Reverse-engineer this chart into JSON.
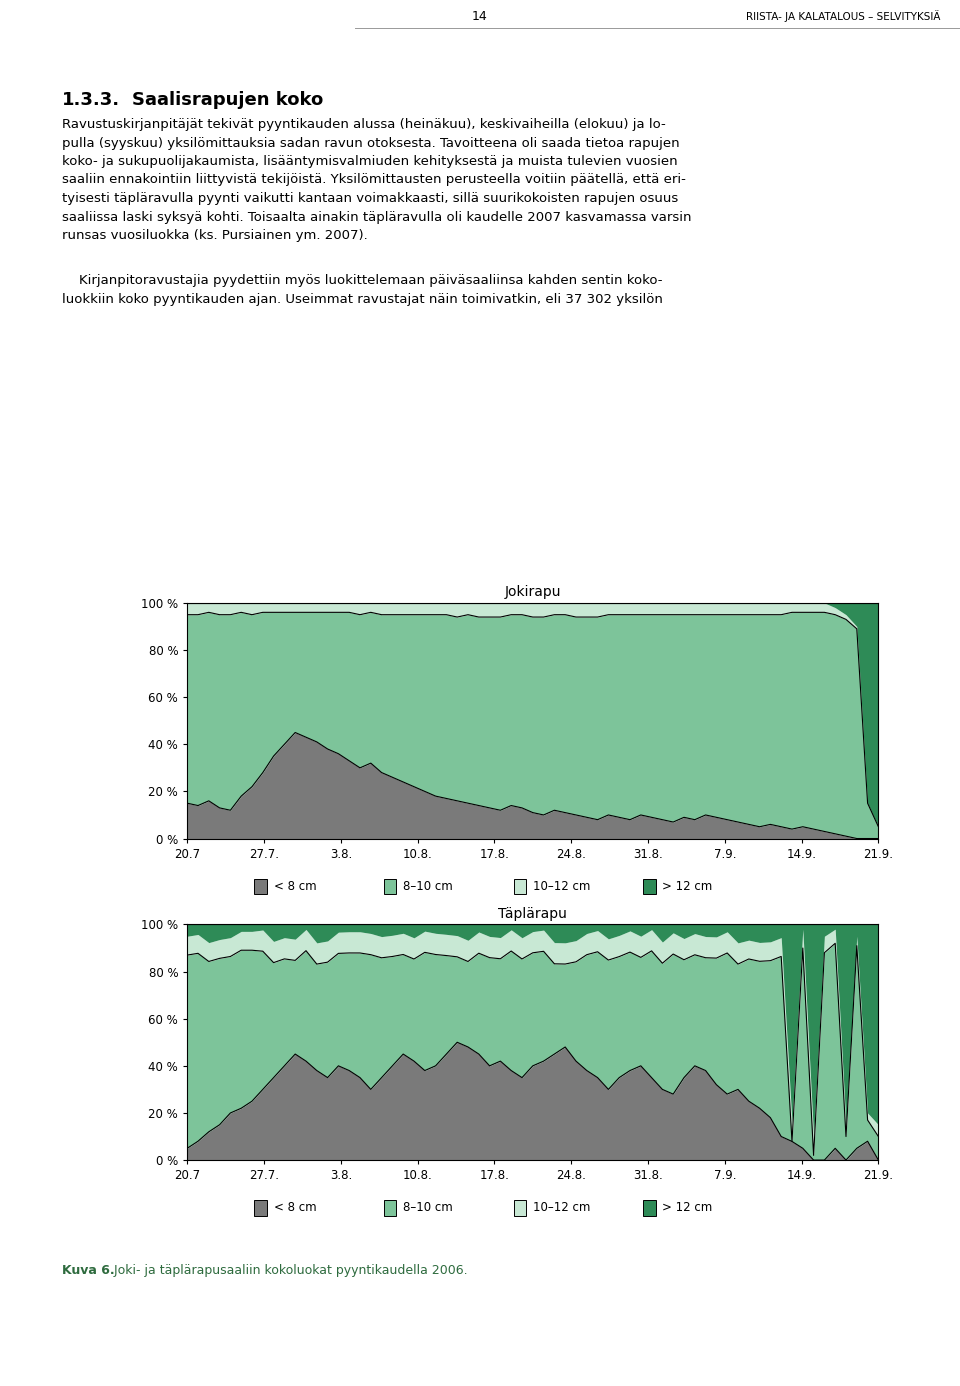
{
  "title1": "Jokirapu",
  "title2": "Täplärapu",
  "xtick_labels": [
    "20.7",
    "27.7.",
    "3.8.",
    "10.8.",
    "17.8.",
    "24.8.",
    "31.8.",
    "7.9.",
    "14.9.",
    "21.9."
  ],
  "ytick_labels": [
    "0 %",
    "20 %",
    "40 %",
    "60 %",
    "80 %",
    "100 %"
  ],
  "legend_labels": [
    "< 8 cm",
    "8–10 cm",
    "10–12 cm",
    "> 12 cm"
  ],
  "color_dark_gray": "#7a7a7a",
  "color_medium_green": "#7DC49A",
  "color_light_green": "#C8E8D4",
  "color_dark_green": "#2E8B57",
  "caption_bold": "Kuva 6.",
  "caption_rest": " Joki- ja täplärapusaaliin kokoluokat pyyntikaudella 2006.",
  "page_number": "14",
  "header_text": "RIISTA- JA KALATALOUS – SELVITYKSIÄ",
  "section_number": "1.3.3.",
  "section_title": "Saalisrapujen koko",
  "background_color": "#FFFFFF"
}
